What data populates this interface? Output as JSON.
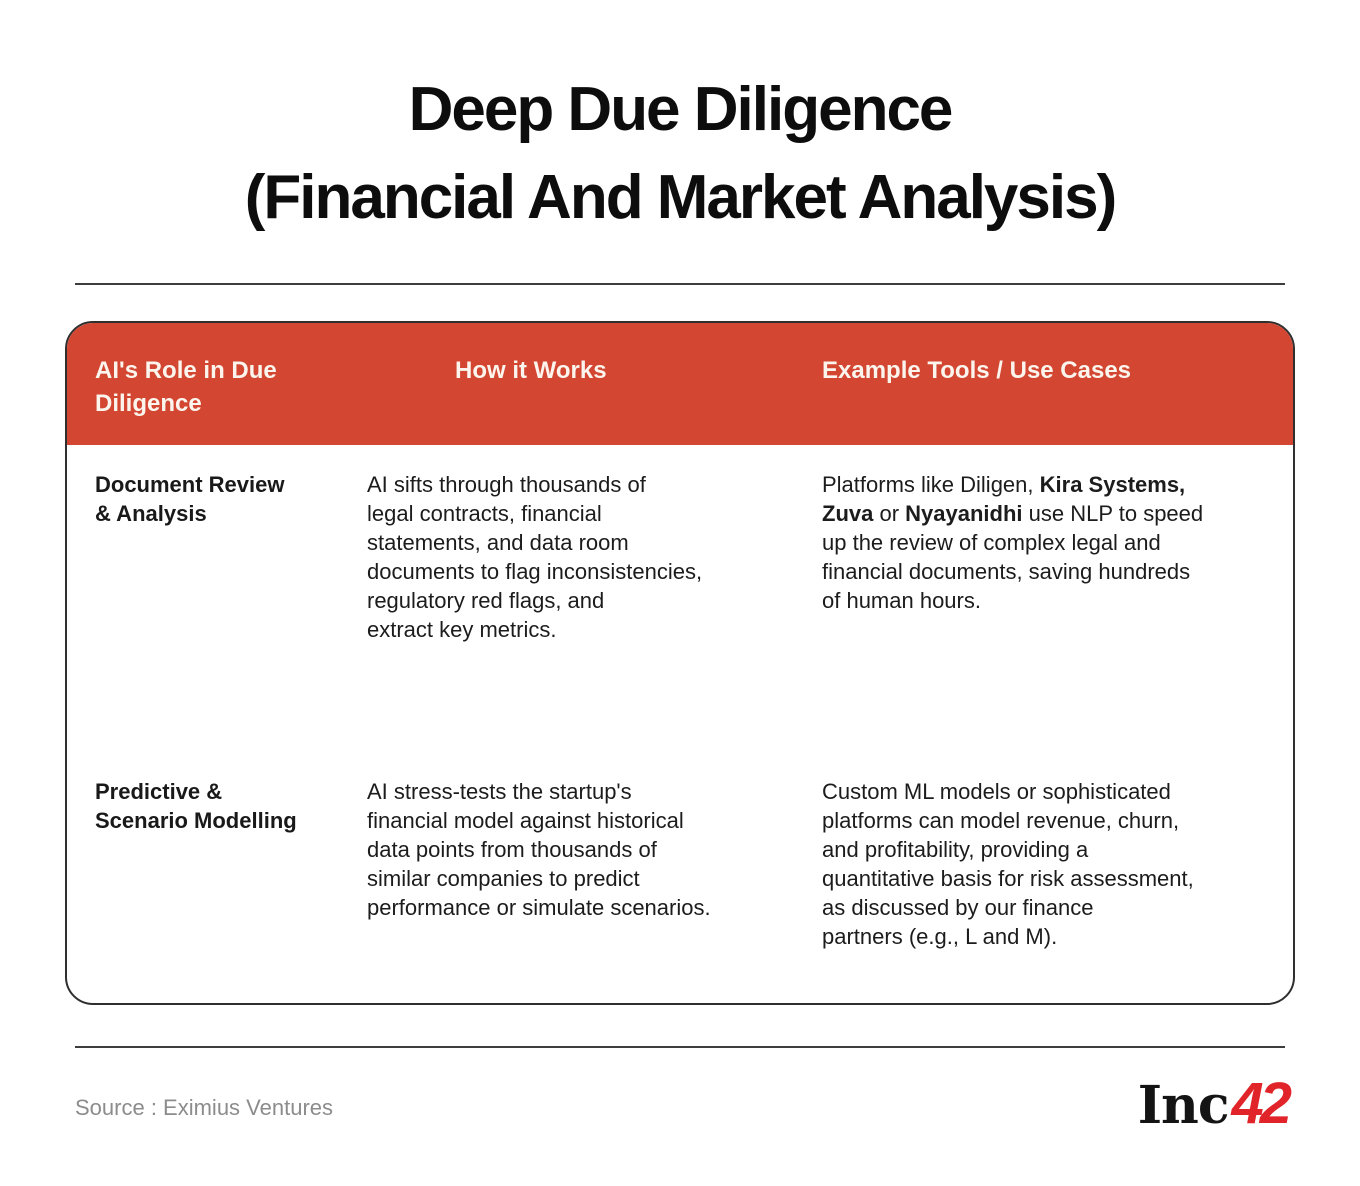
{
  "title": {
    "line1": "Deep Due Diligence",
    "line2": "(Financial And Market Analysis)"
  },
  "table": {
    "headers": {
      "role": "AI's Role in Due\nDiligence",
      "how": "How it Works",
      "examples": "Example Tools / Use Cases"
    },
    "rows": [
      {
        "role": "Document Review\n& Analysis",
        "how": "AI sifts through thousands of\nlegal contracts, financial\nstatements, and data room\ndocuments to flag inconsistencies,\nregulatory red flags, and\nextract key metrics.",
        "examples": [
          {
            "t": "Platforms like Diligen, "
          },
          {
            "t": "Kira Systems,",
            "b": true
          },
          {
            "t": "\n"
          },
          {
            "t": "Zuva",
            "b": true
          },
          {
            "t": " or "
          },
          {
            "t": "Nyayanidhi",
            "b": true
          },
          {
            "t": " use NLP to speed\nup the review of complex legal and\nfinancial documents, saving hundreds\nof human hours."
          }
        ]
      },
      {
        "role": "Predictive &\nScenario Modelling",
        "how": "AI stress-tests the startup's\nfinancial model against historical\ndata points from thousands of\nsimilar companies to predict\nperformance or simulate scenarios.",
        "examples": [
          {
            "t": "Custom ML models or sophisticated\nplatforms can model revenue, churn,\nand profitability, providing a\nquantitative basis for risk assessment,\nas discussed by our finance\npartners (e.g., L and M)."
          }
        ]
      }
    ]
  },
  "footer": {
    "source": "Source : Eximius Ventures",
    "logo_inc": "Inc",
    "logo_42": "42"
  },
  "colors": {
    "header_bg": "#d34632",
    "header_text": "#fbf5ee",
    "body_text": "#1c1c1c",
    "title_text": "#0d0d0d",
    "rule": "#3d3d3d",
    "source_text": "#8c8c8c",
    "logo_black": "#141414",
    "logo_red": "#e02429"
  }
}
